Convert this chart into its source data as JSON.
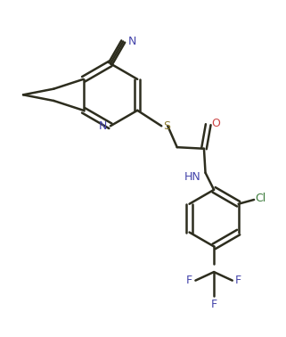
{
  "bg_color": "#ffffff",
  "bond_color": "#2d2d1e",
  "atom_colors": {
    "N": "#4444aa",
    "S": "#8b7a2e",
    "O": "#cc4444",
    "Cl": "#3a7a3a",
    "F": "#4444aa",
    "C": "#2d2d1e"
  },
  "figsize": [
    3.21,
    3.78
  ],
  "dpi": 100
}
